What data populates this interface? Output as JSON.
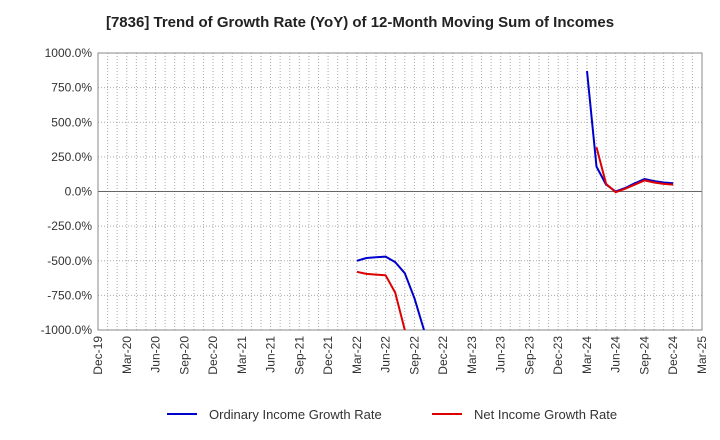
{
  "chart_data": {
    "type": "line",
    "title": "[7836]  Trend of Growth Rate (YoY) of 12-Month Moving Sum of Incomes",
    "xlabel": "",
    "ylabel": "",
    "ylim": [
      -1000,
      1000
    ],
    "grid": true,
    "legend_position": "bottom",
    "y_ticks": [
      1000,
      750,
      500,
      250,
      0,
      -250,
      -500,
      -750,
      -1000
    ],
    "y_tick_labels": [
      "1000.0%",
      "750.0%",
      "500.0%",
      "250.0%",
      "0.0%",
      "-250.0%",
      "-500.0%",
      "-750.0%",
      "-1000.0%"
    ],
    "x_range": [
      "2019-12",
      "2025-03"
    ],
    "x_tick_labels": [
      "Dec-19",
      "Mar-20",
      "Jun-20",
      "Sep-20",
      "Dec-20",
      "Mar-21",
      "Jun-21",
      "Sep-21",
      "Dec-21",
      "Mar-22",
      "Jun-22",
      "Sep-22",
      "Dec-22",
      "Mar-23",
      "Jun-23",
      "Sep-23",
      "Dec-23",
      "Mar-24",
      "Jun-24",
      "Sep-24",
      "Dec-24",
      "Mar-25"
    ],
    "series": [
      {
        "name": "Ordinary Income Growth Rate",
        "color": "#0000cc",
        "segments": [
          [
            {
              "x": "2022-03",
              "y": -500
            },
            {
              "x": "2022-04",
              "y": -480
            },
            {
              "x": "2022-05",
              "y": -475
            },
            {
              "x": "2022-06",
              "y": -470
            },
            {
              "x": "2022-07",
              "y": -510
            },
            {
              "x": "2022-08",
              "y": -590
            },
            {
              "x": "2022-09",
              "y": -770
            },
            {
              "x": "2022-10",
              "y": -1000
            }
          ],
          [
            {
              "x": "2024-03",
              "y": 870
            },
            {
              "x": "2024-04",
              "y": 180
            },
            {
              "x": "2024-05",
              "y": 50
            },
            {
              "x": "2024-06",
              "y": 0
            },
            {
              "x": "2024-07",
              "y": 25
            },
            {
              "x": "2024-08",
              "y": 60
            },
            {
              "x": "2024-09",
              "y": 90
            },
            {
              "x": "2024-10",
              "y": 75
            },
            {
              "x": "2024-11",
              "y": 65
            },
            {
              "x": "2024-12",
              "y": 60
            }
          ]
        ]
      },
      {
        "name": "Net Income Growth Rate",
        "color": "#dd0000",
        "segments": [
          [
            {
              "x": "2022-03",
              "y": -580
            },
            {
              "x": "2022-04",
              "y": -595
            },
            {
              "x": "2022-05",
              "y": -600
            },
            {
              "x": "2022-06",
              "y": -605
            },
            {
              "x": "2022-07",
              "y": -730
            },
            {
              "x": "2022-08",
              "y": -1000
            }
          ],
          [
            {
              "x": "2024-04",
              "y": 320
            },
            {
              "x": "2024-05",
              "y": 55
            },
            {
              "x": "2024-06",
              "y": -5
            },
            {
              "x": "2024-07",
              "y": 20
            },
            {
              "x": "2024-08",
              "y": 50
            },
            {
              "x": "2024-09",
              "y": 80
            },
            {
              "x": "2024-10",
              "y": 65
            },
            {
              "x": "2024-11",
              "y": 55
            },
            {
              "x": "2024-12",
              "y": 50
            }
          ]
        ]
      }
    ]
  }
}
